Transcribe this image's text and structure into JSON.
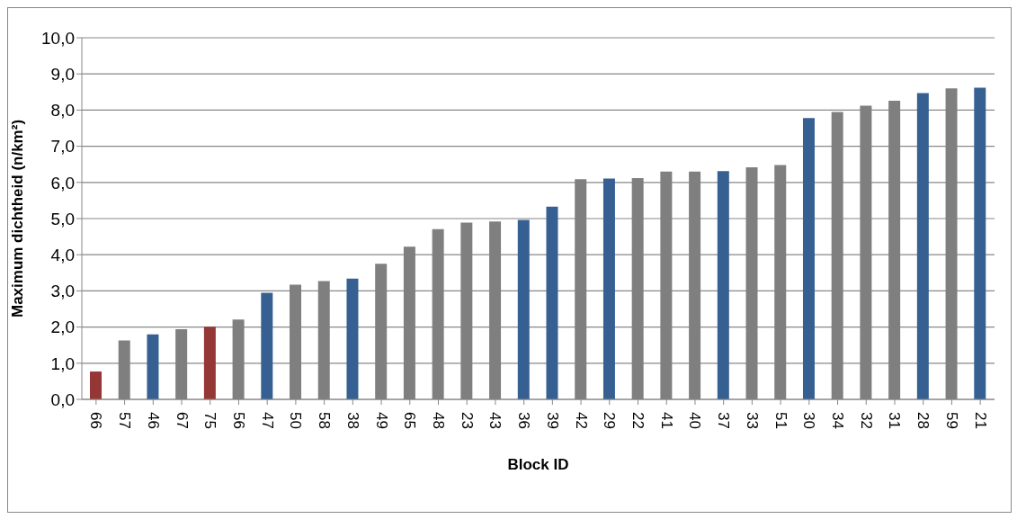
{
  "chart_data": {
    "type": "bar",
    "xlabel": "Block ID",
    "ylabel": "Maximum dichtheid (n/km²)",
    "categories": [
      "66",
      "57",
      "46",
      "67",
      "75",
      "56",
      "47",
      "50",
      "58",
      "38",
      "49",
      "65",
      "48",
      "23",
      "43",
      "36",
      "39",
      "42",
      "29",
      "22",
      "41",
      "40",
      "37",
      "33",
      "51",
      "30",
      "34",
      "32",
      "31",
      "28",
      "59",
      "21"
    ],
    "values": [
      0.77,
      1.63,
      1.8,
      1.94,
      2.01,
      2.21,
      2.95,
      3.17,
      3.27,
      3.34,
      3.75,
      4.22,
      4.71,
      4.89,
      4.92,
      4.96,
      5.33,
      6.09,
      6.11,
      6.12,
      6.3,
      6.3,
      6.31,
      6.42,
      6.48,
      7.78,
      7.95,
      8.12,
      8.26,
      8.47,
      8.6,
      8.62
    ],
    "colors": [
      "#953735",
      "#7f7f7f",
      "#376092",
      "#7f7f7f",
      "#953735",
      "#7f7f7f",
      "#376092",
      "#7f7f7f",
      "#7f7f7f",
      "#376092",
      "#7f7f7f",
      "#7f7f7f",
      "#7f7f7f",
      "#7f7f7f",
      "#7f7f7f",
      "#376092",
      "#376092",
      "#7f7f7f",
      "#376092",
      "#7f7f7f",
      "#7f7f7f",
      "#7f7f7f",
      "#376092",
      "#7f7f7f",
      "#7f7f7f",
      "#376092",
      "#7f7f7f",
      "#7f7f7f",
      "#7f7f7f",
      "#376092",
      "#7f7f7f",
      "#376092"
    ],
    "ylim": [
      0,
      10
    ],
    "yticks": [
      {
        "value": 0,
        "label": "0,0"
      },
      {
        "value": 1,
        "label": "1,0"
      },
      {
        "value": 2,
        "label": "2,0"
      },
      {
        "value": 3,
        "label": "3,0"
      },
      {
        "value": 4,
        "label": "4,0"
      },
      {
        "value": 5,
        "label": "5,0"
      },
      {
        "value": 6,
        "label": "6,0"
      },
      {
        "value": 7,
        "label": "7,0"
      },
      {
        "value": 8,
        "label": "8,0"
      },
      {
        "value": 9,
        "label": "9,0"
      },
      {
        "value": 10,
        "label": "10,0"
      }
    ],
    "grid": "y"
  }
}
